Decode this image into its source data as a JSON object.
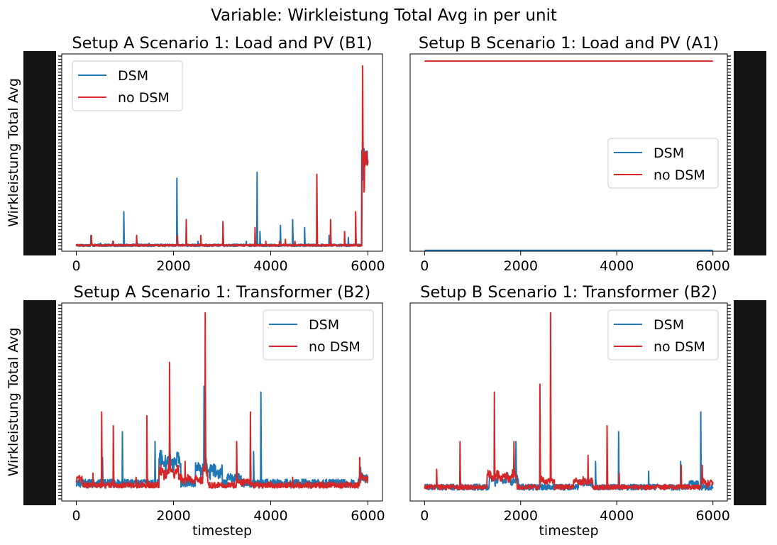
{
  "figure_title": "Variable: Wirkleistung Total Avg in per unit",
  "colors": {
    "dsm": "#1f77b4",
    "no_dsm": "#d62728",
    "axis": "#000000"
  },
  "chart_data": [
    {
      "type": "line",
      "title": "Setup A Scenario 1: Load and PV (B1)",
      "xlabel": "",
      "ylabel": "Wirkleistung Total Avg",
      "xlim": [
        -300,
        6300
      ],
      "ylim": [
        0.0,
        1.0
      ],
      "xticks": [
        "0",
        "2000",
        "4000",
        "6000"
      ],
      "yaxis_side": "left",
      "legend": {
        "placement": "upper left",
        "entries": [
          "DSM",
          "no DSM"
        ]
      },
      "grid": false,
      "series": [
        {
          "name": "DSM",
          "kind": "spiky",
          "baseline": 0.03,
          "noise": 0.006,
          "spikes": [
            [
              300,
              0.08
            ],
            [
              500,
              0.04
            ],
            [
              750,
              0.05
            ],
            [
              980,
              0.2
            ],
            [
              1250,
              0.05
            ],
            [
              1500,
              0.04
            ],
            [
              2070,
              0.37
            ],
            [
              2500,
              0.05
            ],
            [
              3020,
              0.14
            ],
            [
              3500,
              0.05
            ],
            [
              3720,
              0.4
            ],
            [
              3780,
              0.1
            ],
            [
              4200,
              0.13
            ],
            [
              4450,
              0.16
            ],
            [
              4700,
              0.12
            ],
            [
              5200,
              0.08
            ],
            [
              5600,
              0.07
            ],
            [
              5900,
              0.4
            ]
          ],
          "tail": {
            "start": 5870,
            "end": 6000,
            "level": 0.48
          }
        },
        {
          "name": "no DSM",
          "kind": "spiky",
          "baseline": 0.03,
          "noise": 0.004,
          "spikes": [
            [
              310,
              0.08
            ],
            [
              760,
              0.05
            ],
            [
              1240,
              0.08
            ],
            [
              2080,
              0.08
            ],
            [
              2260,
              0.16
            ],
            [
              2560,
              0.08
            ],
            [
              3020,
              0.15
            ],
            [
              3680,
              0.12
            ],
            [
              3900,
              0.05
            ],
            [
              4180,
              0.05
            ],
            [
              4300,
              0.06
            ],
            [
              4500,
              0.05
            ],
            [
              4950,
              0.39
            ],
            [
              5230,
              0.16
            ],
            [
              5520,
              0.1
            ],
            [
              5750,
              0.2
            ],
            [
              5890,
              0.94
            ],
            [
              5920,
              0.3
            ]
          ],
          "tail": {
            "start": 5880,
            "end": 6000,
            "level": 0.47
          }
        }
      ]
    },
    {
      "type": "line",
      "title": "Setup B Scenario 1: Load and PV (A1)",
      "xlabel": "",
      "ylabel": "",
      "xlim": [
        -300,
        6300
      ],
      "ylim": [
        -0.06,
        1.04
      ],
      "xticks": [
        "0",
        "2000",
        "4000",
        "6000"
      ],
      "yaxis_side": "right",
      "legend": {
        "placement": "center right",
        "entries": [
          "DSM",
          "no DSM"
        ]
      },
      "grid": false,
      "series": [
        {
          "name": "DSM",
          "kind": "flat",
          "value": -0.055
        },
        {
          "name": "no DSM",
          "kind": "flat",
          "value": 1.0
        }
      ]
    },
    {
      "type": "line",
      "title": "Setup A Scenario 1: Transformer (B2)",
      "xlabel": "timestep",
      "ylabel": "Wirkleistung Total Avg",
      "xlim": [
        -300,
        6300
      ],
      "ylim": [
        0.0,
        1.0
      ],
      "xticks": [
        "0",
        "2000",
        "4000",
        "6000"
      ],
      "yaxis_side": "left",
      "legend": {
        "placement": "upper right",
        "entries": [
          "DSM",
          "no DSM"
        ]
      },
      "grid": false,
      "series": [
        {
          "name": "DSM",
          "kind": "noisy",
          "baseline": 0.09,
          "noise": 0.02,
          "bumps": [
            [
              1700,
              2150,
              0.2
            ],
            [
              2450,
              2800,
              0.14
            ],
            [
              2800,
              3000,
              0.1
            ],
            [
              3100,
              3400,
              0.05
            ],
            [
              5800,
              6000,
              0.05
            ]
          ],
          "spikes": [
            [
              540,
              0.22
            ],
            [
              950,
              0.35
            ],
            [
              1620,
              0.3
            ],
            [
              1940,
              0.22
            ],
            [
              2630,
              0.58
            ],
            [
              3650,
              0.25
            ],
            [
              3800,
              0.55
            ],
            [
              5850,
              0.17
            ]
          ]
        },
        {
          "name": "no DSM",
          "kind": "noisy",
          "baseline": 0.08,
          "noise": 0.015,
          "bumps": [
            [
              0,
              120,
              0.05
            ],
            [
              1700,
              2100,
              0.12
            ],
            [
              2100,
              2600,
              0.05
            ],
            [
              2600,
              2700,
              0.12
            ],
            [
              3300,
              3600,
              0.03
            ],
            [
              5850,
              6000,
              0.06
            ]
          ],
          "spikes": [
            [
              340,
              0.14
            ],
            [
              520,
              0.45
            ],
            [
              760,
              0.38
            ],
            [
              1230,
              0.12
            ],
            [
              1450,
              0.43
            ],
            [
              1920,
              0.7
            ],
            [
              2240,
              0.2
            ],
            [
              2650,
              0.95
            ],
            [
              3300,
              0.3
            ],
            [
              3580,
              0.45
            ],
            [
              4450,
              0.12
            ],
            [
              5830,
              0.22
            ]
          ]
        }
      ]
    },
    {
      "type": "line",
      "title": "Setup B Scenario 1: Transformer (B2)",
      "xlabel": "timestep",
      "ylabel": "",
      "xlim": [
        -300,
        6300
      ],
      "ylim": [
        0.0,
        1.0
      ],
      "xticks": [
        "0",
        "2000",
        "4000",
        "6000"
      ],
      "yaxis_side": "right",
      "legend": {
        "placement": "upper right",
        "entries": [
          "DSM",
          "no DSM"
        ]
      },
      "grid": false,
      "series": [
        {
          "name": "DSM",
          "kind": "noisy",
          "baseline": 0.07,
          "noise": 0.015,
          "bumps": [
            [
              1350,
              1950,
              0.07
            ],
            [
              3200,
              3500,
              0.04
            ],
            [
              5500,
              5700,
              0.03
            ]
          ],
          "spikes": [
            [
              250,
              0.12
            ],
            [
              1450,
              0.2
            ],
            [
              1900,
              0.3
            ],
            [
              2400,
              0.2
            ],
            [
              3560,
              0.2
            ],
            [
              4040,
              0.35
            ],
            [
              4660,
              0.15
            ],
            [
              5330,
              0.2
            ],
            [
              5750,
              0.45
            ]
          ]
        },
        {
          "name": "no DSM",
          "kind": "noisy",
          "baseline": 0.07,
          "noise": 0.012,
          "bumps": [
            [
              1300,
              1920,
              0.1
            ],
            [
              2400,
              2700,
              0.06
            ],
            [
              3100,
              3500,
              0.05
            ],
            [
              5750,
              6000,
              0.04
            ]
          ],
          "spikes": [
            [
              250,
              0.16
            ],
            [
              740,
              0.3
            ],
            [
              1450,
              0.55
            ],
            [
              1860,
              0.3
            ],
            [
              2400,
              0.59
            ],
            [
              2620,
              0.95
            ],
            [
              3400,
              0.23
            ],
            [
              3800,
              0.38
            ],
            [
              4050,
              0.14
            ],
            [
              5340,
              0.18
            ],
            [
              5780,
              0.18
            ]
          ]
        }
      ]
    }
  ]
}
